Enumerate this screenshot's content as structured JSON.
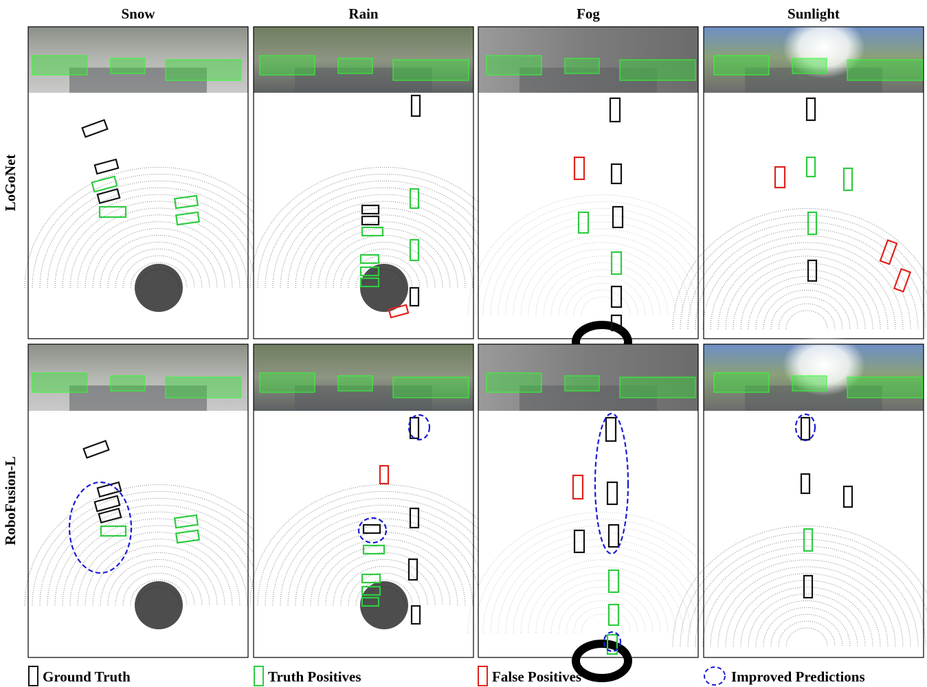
{
  "columns": [
    "Snow",
    "Rain",
    "Fog",
    "Sunlight"
  ],
  "rows": [
    "LoGoNet",
    "RoboFusion-L"
  ],
  "legend": [
    "Ground Truth",
    "Truth Positives",
    "False Positives",
    "Improved Predictions"
  ]
}
